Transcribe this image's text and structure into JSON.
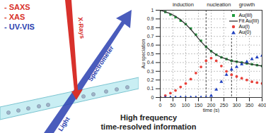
{
  "diagram": {
    "techniques": [
      {
        "text": "- SAXS",
        "color": "#d8312b"
      },
      {
        "text": "- XAS",
        "color": "#d8312b"
      },
      {
        "text": "- UV-VIS",
        "color": "#2a3fb0"
      }
    ],
    "beams": {
      "xray": "X-Rays",
      "light": "Light",
      "spectrometer": "Spectrometer"
    },
    "caption": [
      "High frequency",
      "time-resolved information"
    ]
  },
  "chart_data": {
    "type": "scatter",
    "x_label": "time (s)",
    "y_label": "Au speciation",
    "x": [
      0,
      20,
      40,
      60,
      80,
      100,
      120,
      140,
      160,
      180,
      200,
      220,
      240,
      260,
      280,
      300,
      320,
      340,
      360,
      380,
      400
    ],
    "series": [
      {
        "name": "Au(III)",
        "color": "#1f9a3c",
        "type": "scatter",
        "marker": "square",
        "values": [
          1.0,
          0.98,
          0.95,
          0.92,
          0.88,
          0.84,
          0.79,
          0.72,
          0.65,
          0.58,
          0.53,
          0.49,
          0.46,
          0.44,
          0.42,
          0.41,
          0.4,
          0.39,
          0.38,
          0.37,
          0.36
        ]
      },
      {
        "name": "Fit Au(III)",
        "color": "#333333",
        "type": "line",
        "line_style": "solid",
        "values": [
          1.0,
          0.98,
          0.96,
          0.93,
          0.89,
          0.84,
          0.78,
          0.71,
          0.64,
          0.58,
          0.53,
          0.49,
          0.46,
          0.44,
          0.42,
          0.41,
          0.4,
          0.39,
          0.38,
          0.37,
          0.36
        ]
      },
      {
        "name": "Au(I)",
        "color": "#e8413a",
        "type": "scatter",
        "marker": "circle",
        "values": [
          0.0,
          0.02,
          0.05,
          0.08,
          0.12,
          0.16,
          0.21,
          0.28,
          0.35,
          0.42,
          0.45,
          0.42,
          0.36,
          0.3,
          0.26,
          0.24,
          0.22,
          0.2,
          0.18,
          0.17,
          0.16
        ]
      },
      {
        "name": "Au(0)",
        "color": "#1f3fbf",
        "type": "scatter",
        "marker": "triangle",
        "values": [
          0.0,
          0.0,
          0.0,
          0.0,
          0.0,
          0.0,
          0.0,
          0.0,
          0.0,
          0.0,
          0.02,
          0.09,
          0.18,
          0.26,
          0.32,
          0.35,
          0.38,
          0.41,
          0.44,
          0.46,
          0.48
        ]
      }
    ],
    "annotations": [
      {
        "text": "induction",
        "x": 90
      },
      {
        "text": "nucleation",
        "x": 230
      },
      {
        "text": "growth",
        "x": 340
      }
    ],
    "phase_boundaries": [
      180,
      280
    ],
    "xlim": [
      0,
      400
    ],
    "xticks": [
      0,
      50,
      100,
      150,
      200,
      250,
      300,
      350,
      400
    ],
    "ylim": [
      0,
      1
    ],
    "yticks": [
      0,
      0.1,
      0.2,
      0.3,
      0.4,
      0.5,
      0.6,
      0.7,
      0.8,
      0.9,
      1
    ],
    "grid": true,
    "legend": "upper right"
  }
}
